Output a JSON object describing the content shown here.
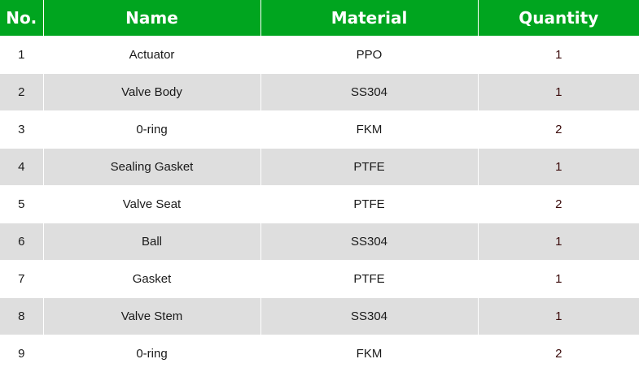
{
  "colors": {
    "header_bg": "#00a51f",
    "alt_row_bg": "#dedede"
  },
  "headers": [
    "No.",
    "Name",
    "Material",
    "Quantity"
  ],
  "rows": [
    {
      "no": "1",
      "name": "Actuator",
      "material": "PPO",
      "quantity": "1"
    },
    {
      "no": "2",
      "name": "Valve Body",
      "material": "SS304",
      "quantity": "1"
    },
    {
      "no": "3",
      "name": "0-ring",
      "material": "FKM",
      "quantity": "2"
    },
    {
      "no": "4",
      "name": "Sealing Gasket",
      "material": "PTFE",
      "quantity": "1"
    },
    {
      "no": "5",
      "name": "Valve Seat",
      "material": "PTFE",
      "quantity": "2"
    },
    {
      "no": "6",
      "name": "Ball",
      "material": "SS304",
      "quantity": "1"
    },
    {
      "no": "7",
      "name": "Gasket",
      "material": "PTFE",
      "quantity": "1"
    },
    {
      "no": "8",
      "name": "Valve Stem",
      "material": "SS304",
      "quantity": "1"
    },
    {
      "no": "9",
      "name": "0-ring",
      "material": "FKM",
      "quantity": "2"
    }
  ]
}
